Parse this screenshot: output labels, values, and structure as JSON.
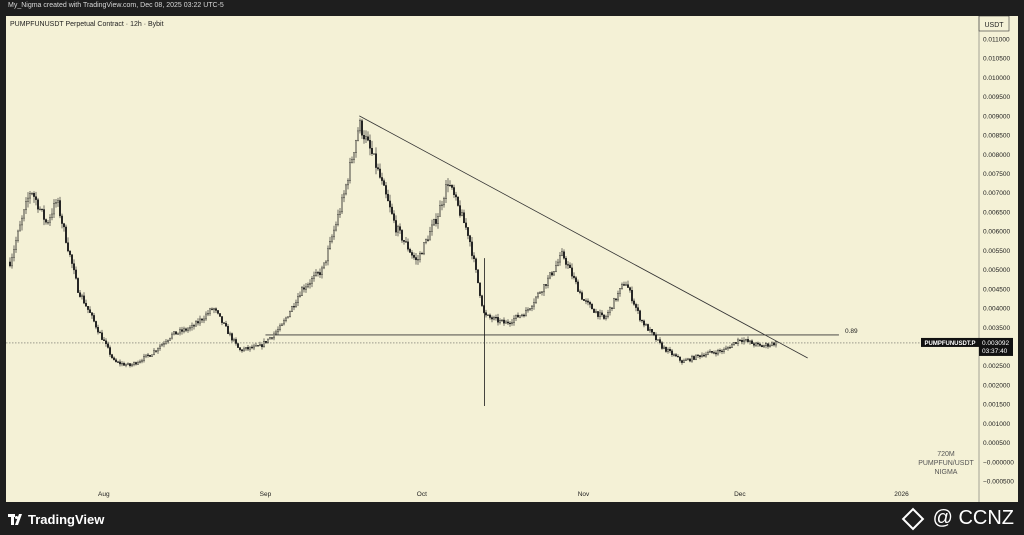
{
  "header": {
    "created_by": "My_Nigma created with TradingView.com, Dec 08, 2025 03:22 UTC-5"
  },
  "chart_data": {
    "type": "candlestick",
    "title": "PUMPFUNUSDT Perpetual Contract · 12h · Bybit",
    "currency": "USDT",
    "ylim": [
      -0.0005,
      0.011
    ],
    "y_ticks": [
      "0.011000",
      "0.010500",
      "0.010000",
      "0.009500",
      "0.009000",
      "0.008500",
      "0.008000",
      "0.007500",
      "0.007000",
      "0.006500",
      "0.006000",
      "0.005500",
      "0.005000",
      "0.004500",
      "0.004000",
      "0.003500",
      "0.003000",
      "0.002500",
      "0.002000",
      "0.001500",
      "0.001000",
      "0.000500",
      "−0.000000",
      "−0.000500"
    ],
    "x_ticks": [
      "Aug",
      "Sep",
      "Oct",
      "Nov",
      "Dec",
      "2026"
    ],
    "price_points": [
      [
        "2025-07-14",
        0.0052
      ],
      [
        "2025-07-18",
        0.0071
      ],
      [
        "2025-07-21",
        0.0062
      ],
      [
        "2025-07-23",
        0.0068
      ],
      [
        "2025-07-27",
        0.0045
      ],
      [
        "2025-07-31",
        0.0034
      ],
      [
        "2025-08-03",
        0.0026
      ],
      [
        "2025-08-06",
        0.0025
      ],
      [
        "2025-08-10",
        0.0028
      ],
      [
        "2025-08-14",
        0.0033
      ],
      [
        "2025-08-18",
        0.0035
      ],
      [
        "2025-08-22",
        0.004
      ],
      [
        "2025-08-27",
        0.0029
      ],
      [
        "2025-08-31",
        0.003
      ],
      [
        "2025-09-04",
        0.0035
      ],
      [
        "2025-09-08",
        0.0045
      ],
      [
        "2025-09-12",
        0.005
      ],
      [
        "2025-09-16",
        0.0069
      ],
      [
        "2025-09-19",
        0.0088
      ],
      [
        "2025-09-22",
        0.0078
      ],
      [
        "2025-09-26",
        0.0061
      ],
      [
        "2025-09-30",
        0.0052
      ],
      [
        "2025-10-04",
        0.0064
      ],
      [
        "2025-10-06",
        0.0073
      ],
      [
        "2025-10-10",
        0.0059
      ],
      [
        "2025-10-13",
        0.0038
      ],
      [
        "2025-10-17",
        0.0036
      ],
      [
        "2025-10-21",
        0.0039
      ],
      [
        "2025-10-25",
        0.0047
      ],
      [
        "2025-10-28",
        0.0054
      ],
      [
        "2025-11-01",
        0.0042
      ],
      [
        "2025-11-05",
        0.0037
      ],
      [
        "2025-11-09",
        0.0047
      ],
      [
        "2025-11-12",
        0.0037
      ],
      [
        "2025-11-16",
        0.003
      ],
      [
        "2025-11-20",
        0.0026
      ],
      [
        "2025-11-24",
        0.0028
      ],
      [
        "2025-11-28",
        0.0029
      ],
      [
        "2025-12-01",
        0.0032
      ],
      [
        "2025-12-05",
        0.003
      ],
      [
        "2025-12-08",
        0.0031
      ]
    ],
    "wick_extremes": [
      [
        "2025-10-13",
        0.00145,
        0.0053
      ]
    ],
    "trendline": [
      [
        "2025-09-19",
        0.009
      ],
      [
        "2025-12-14",
        0.0027
      ]
    ],
    "horizontal_level": {
      "value": 0.0033,
      "label": "0.89",
      "start": "2025-09-01"
    },
    "current_price": {
      "symbol": "PUMPFUNUSDT.P",
      "value": "0.003092",
      "countdown": "03:37:40",
      "num": 0.003092
    },
    "watermark": [
      "720M",
      "PUMPFUN/USDT",
      "NIGMA"
    ]
  },
  "footer": {
    "brand": "TradingView",
    "credit": "@ CCNZ"
  },
  "colors": {
    "background": "#f4f1d6",
    "candles": "#1a1a1a",
    "line": "#333333",
    "text": "#222222",
    "label_bg": "#111111"
  }
}
